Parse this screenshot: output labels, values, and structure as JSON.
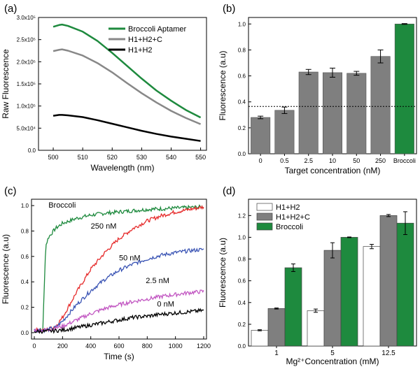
{
  "panels": {
    "a": {
      "tag": "(a)"
    },
    "b": {
      "tag": "(b)"
    },
    "c": {
      "tag": "(c)"
    },
    "d": {
      "tag": "(d)"
    }
  },
  "chart_data": [
    {
      "panel": "a",
      "type": "line",
      "xlabel": "Wavelength (nm)",
      "ylabel": "Raw Fluorescence",
      "xlim": [
        495,
        552
      ],
      "ylim": [
        0,
        300000.0
      ],
      "xticks": [
        500,
        510,
        520,
        530,
        540,
        550
      ],
      "xtick_labels": [
        "500",
        "510",
        "520",
        "530",
        "540",
        "550"
      ],
      "yticks": [
        0,
        50000,
        100000,
        150000,
        200000,
        250000,
        300000
      ],
      "ytick_labels": [
        "0.0",
        "5.0x10⁴",
        "1.0x10⁵",
        "1.5x10⁵",
        "2.0x10⁵",
        "2.5x10⁵",
        "3.0x10⁵"
      ],
      "legend": "top-right",
      "series": [
        {
          "name": "Broccoli Aptamer",
          "color": "#1e8a3e",
          "x": [
            500,
            502,
            503,
            505,
            510,
            515,
            520,
            525,
            530,
            535,
            540,
            545,
            550
          ],
          "y": [
            279000,
            283000,
            284000,
            281000,
            268000,
            247000,
            220000,
            191000,
            162000,
            135000,
            112000,
            91000,
            74000
          ]
        },
        {
          "name": "H1+H2+C",
          "color": "#888888",
          "x": [
            500,
            502,
            503,
            505,
            510,
            515,
            520,
            525,
            530,
            535,
            540,
            545,
            550
          ],
          "y": [
            224000,
            227000,
            228000,
            225000,
            214000,
            197000,
            176000,
            152000,
            129000,
            108000,
            89000,
            73000,
            59000
          ]
        },
        {
          "name": "H1+H2",
          "color": "#000000",
          "x": [
            500,
            502,
            503,
            505,
            510,
            515,
            520,
            525,
            530,
            535,
            540,
            545,
            550
          ],
          "y": [
            78000,
            80000,
            80000,
            79000,
            75000,
            68000,
            60000,
            52000,
            44000,
            37000,
            31000,
            26000,
            21000
          ]
        }
      ]
    },
    {
      "panel": "b",
      "type": "bar",
      "xlabel": "Target concentration (nM)",
      "ylabel": "Fluorescence (a.u)",
      "ylim": [
        0,
        1.05
      ],
      "yticks": [
        0,
        0.2,
        0.4,
        0.6,
        0.8,
        1.0
      ],
      "ytick_labels": [
        "0.0",
        "0.2",
        "0.4",
        "0.6",
        "0.8",
        "1.0"
      ],
      "categories": [
        "0",
        "0.5",
        "2.5",
        "10",
        "50",
        "250",
        "Broccoli"
      ],
      "values": [
        0.28,
        0.335,
        0.63,
        0.625,
        0.62,
        0.75,
        1.0
      ],
      "errors": [
        0.01,
        0.025,
        0.02,
        0.035,
        0.015,
        0.05,
        0.003
      ],
      "colors": [
        "#7f7f7f",
        "#7f7f7f",
        "#7f7f7f",
        "#7f7f7f",
        "#7f7f7f",
        "#7f7f7f",
        "#1e8a3e"
      ],
      "threshold": 0.365
    },
    {
      "panel": "c",
      "type": "line",
      "xlabel": "Time (s)",
      "ylabel": "Fluorescence (a.u)",
      "xlim": [
        -20,
        1220
      ],
      "ylim": [
        -0.05,
        1.05
      ],
      "xticks": [
        0,
        200,
        400,
        600,
        800,
        1000,
        1200
      ],
      "xtick_labels": [
        "0",
        "200",
        "400",
        "600",
        "800",
        "1000",
        "1200"
      ],
      "yticks": [
        0,
        0.2,
        0.4,
        0.6,
        0.8,
        1.0
      ],
      "ytick_labels": [
        "0.0",
        "0.2",
        "0.4",
        "0.6",
        "0.8",
        "1.0"
      ],
      "annotations": [
        "Broccoli",
        "250 nM",
        "50 nM",
        "2.5 nM",
        "0 nM"
      ],
      "series": [
        {
          "name": "Broccoli",
          "color": "#1e8a3e",
          "x": [
            0,
            60,
            72,
            80,
            100,
            150,
            200,
            300,
            400,
            500,
            600,
            800,
            1000,
            1200
          ],
          "y": [
            0.02,
            0.02,
            0.4,
            0.68,
            0.75,
            0.82,
            0.86,
            0.9,
            0.925,
            0.94,
            0.95,
            0.97,
            0.98,
            0.99
          ]
        },
        {
          "name": "250 nM",
          "color": "#e62a2a",
          "x": [
            0,
            80,
            150,
            200,
            300,
            400,
            500,
            600,
            700,
            800,
            900,
            1000,
            1100,
            1200
          ],
          "y": [
            0.02,
            0.02,
            0.05,
            0.12,
            0.32,
            0.5,
            0.63,
            0.74,
            0.82,
            0.88,
            0.92,
            0.95,
            0.97,
            0.99
          ]
        },
        {
          "name": "50 nM",
          "color": "#3a54b4",
          "x": [
            0,
            80,
            150,
            200,
            300,
            400,
            500,
            600,
            700,
            800,
            900,
            1000,
            1100,
            1200
          ],
          "y": [
            0.02,
            0.02,
            0.04,
            0.09,
            0.22,
            0.33,
            0.42,
            0.49,
            0.54,
            0.58,
            0.61,
            0.63,
            0.645,
            0.655
          ]
        },
        {
          "name": "2.5 nM",
          "color": "#c257c2",
          "x": [
            0,
            80,
            200,
            300,
            400,
            500,
            600,
            700,
            800,
            900,
            1000,
            1100,
            1200
          ],
          "y": [
            0.02,
            0.02,
            0.05,
            0.1,
            0.15,
            0.19,
            0.22,
            0.245,
            0.265,
            0.285,
            0.3,
            0.315,
            0.325
          ]
        },
        {
          "name": "0 nM",
          "color": "#000000",
          "x": [
            0,
            80,
            200,
            300,
            400,
            500,
            600,
            700,
            800,
            900,
            1000,
            1100,
            1200
          ],
          "y": [
            0.01,
            0.01,
            0.02,
            0.04,
            0.06,
            0.08,
            0.1,
            0.12,
            0.13,
            0.145,
            0.155,
            0.165,
            0.175
          ]
        }
      ]
    },
    {
      "panel": "d",
      "type": "bar",
      "xlabel": "Mg²⁺Concentration (mM)",
      "ylabel": "Fluorescence (a.u)",
      "ylim": [
        0,
        1.35
      ],
      "yticks": [
        0,
        0.2,
        0.4,
        0.6,
        0.8,
        1.0,
        1.2
      ],
      "ytick_labels": [
        "0.0",
        "0.2",
        "0.4",
        "0.6",
        "0.8",
        "1.0",
        "1.2"
      ],
      "categories": [
        "1",
        "5",
        "12.5"
      ],
      "legend": "top-left",
      "series": [
        {
          "name": "H1+H2",
          "color": "#ffffff",
          "values": [
            0.145,
            0.325,
            0.915
          ],
          "errors": [
            0.005,
            0.015,
            0.02
          ]
        },
        {
          "name": "H1+H2+C",
          "color": "#7f7f7f",
          "values": [
            0.345,
            0.88,
            1.2
          ],
          "errors": [
            0.005,
            0.07,
            0.01
          ]
        },
        {
          "name": "Broccoli",
          "color": "#1e8a3e",
          "values": [
            0.72,
            1.0,
            1.13
          ],
          "errors": [
            0.035,
            0.003,
            0.105
          ]
        }
      ]
    }
  ]
}
